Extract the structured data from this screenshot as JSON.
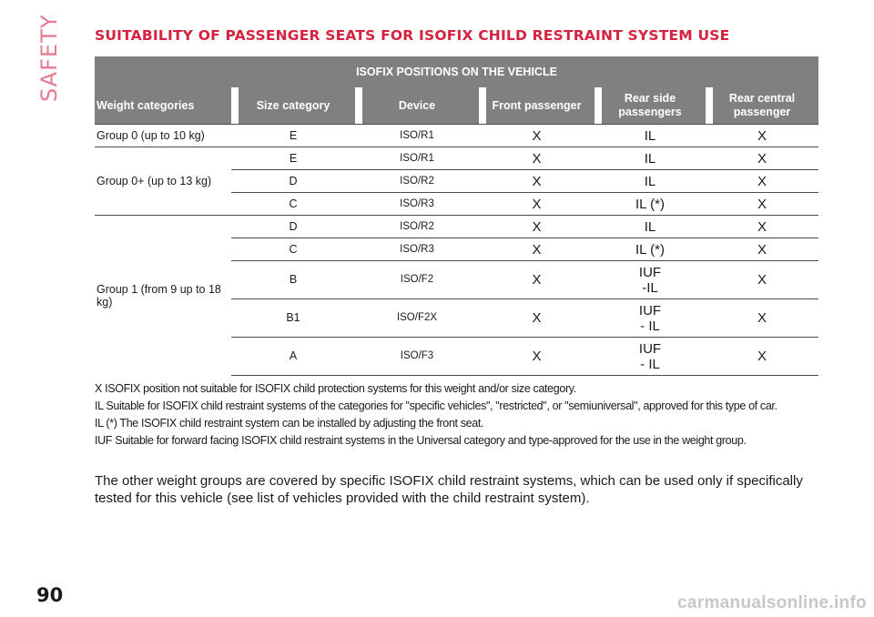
{
  "side_tab": "SAFETY",
  "title": "SUITABILITY OF PASSENGER SEATS FOR ISOFIX CHILD RESTRAINT SYSTEM USE",
  "table": {
    "group_header": "ISOFIX POSITIONS ON THE VEHICLE",
    "columns": [
      "Weight categories",
      "Size category",
      "Device",
      "Front passenger",
      "Rear side passengers",
      "Rear central passenger"
    ],
    "groups": [
      {
        "label": "Group 0 (up to 10 kg)",
        "rows": [
          {
            "size": "E",
            "device": "ISO/R1",
            "front": "X",
            "rear_side": "IL",
            "rear_central": "X"
          }
        ]
      },
      {
        "label": "Group 0+ (up to 13 kg)",
        "rows": [
          {
            "size": "E",
            "device": "ISO/R1",
            "front": "X",
            "rear_side": "IL",
            "rear_central": "X"
          },
          {
            "size": "D",
            "device": "ISO/R2",
            "front": "X",
            "rear_side": "IL",
            "rear_central": "X"
          },
          {
            "size": "C",
            "device": "ISO/R3",
            "front": "X",
            "rear_side": "IL (*)",
            "rear_central": "X"
          }
        ]
      },
      {
        "label": "Group 1 (from 9 up to 18 kg)",
        "rows": [
          {
            "size": "D",
            "device": "ISO/R2",
            "front": "X",
            "rear_side": "IL",
            "rear_central": "X"
          },
          {
            "size": "C",
            "device": "ISO/R3",
            "front": "X",
            "rear_side": "IL (*)",
            "rear_central": "X"
          },
          {
            "size": "B",
            "device": "ISO/F2",
            "front": "X",
            "rear_side": "IUF\n-IL",
            "rear_central": "X"
          },
          {
            "size": "B1",
            "device": "ISO/F2X",
            "front": "X",
            "rear_side": "IUF\n- IL",
            "rear_central": "X"
          },
          {
            "size": "A",
            "device": "ISO/F3",
            "front": "X",
            "rear_side": "IUF\n- IL",
            "rear_central": "X"
          }
        ]
      }
    ]
  },
  "notes": [
    "X ISOFIX position not suitable for ISOFIX child protection systems for this weight and/or size category.",
    "IL Suitable for ISOFIX child restraint systems of the categories for \"specific vehicles\", \"restricted\", or \"semiuniversal\", approved for this type of car.",
    "IL (*) The ISOFIX child restraint system can be installed by adjusting the front seat.",
    "IUF Suitable for forward facing ISOFIX child restraint systems in the Universal category and type-approved for the use in the weight group."
  ],
  "paragraph": "The other weight groups are covered by specific ISOFIX child restraint systems, which can be used only if specifically tested for this vehicle (see list of vehicles provided with the child restraint system).",
  "page_number": "90",
  "watermark": "carmanualsonline.info"
}
